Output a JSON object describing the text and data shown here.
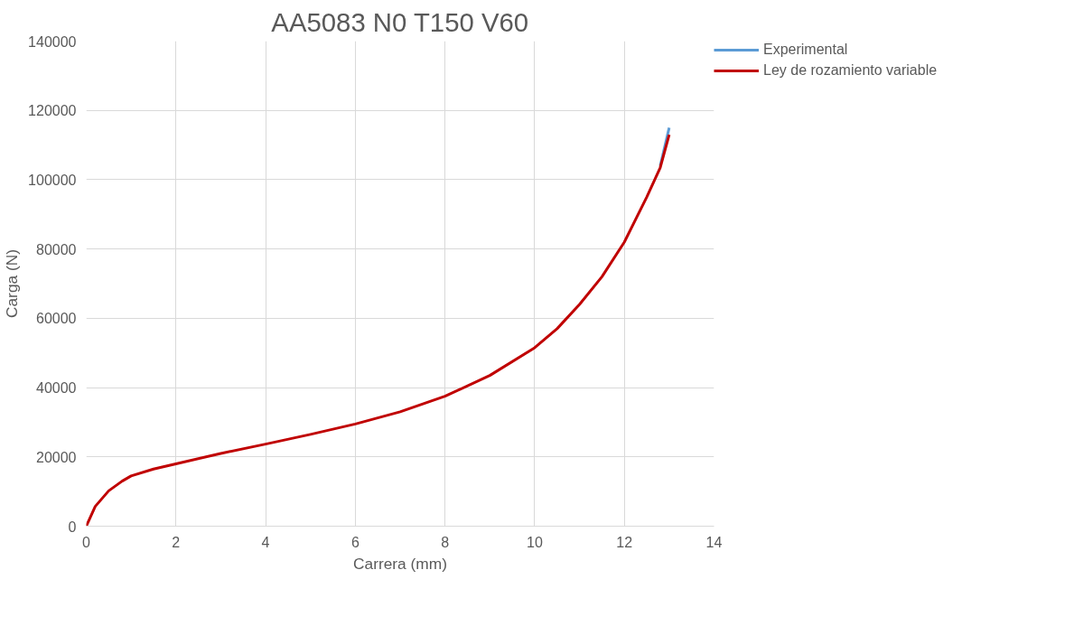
{
  "chart_data": {
    "type": "line",
    "title": "AA5083 N0 T150 V60",
    "xlabel": "Carrera (mm)",
    "ylabel": "Carga (N)",
    "xlim": [
      0,
      14
    ],
    "xticks": [
      0,
      2,
      4,
      6,
      8,
      10,
      12,
      14
    ],
    "ylim": [
      0,
      140000
    ],
    "yticks": [
      0,
      20000,
      40000,
      60000,
      80000,
      100000,
      120000,
      140000
    ],
    "grid": true,
    "legend": "right",
    "series": [
      {
        "name": "Experimental",
        "color": "#5b9bd5",
        "x": [
          12.8,
          13
        ],
        "values": [
          104000,
          115000
        ]
      },
      {
        "name": "Ley de rozamiento variable",
        "color": "#c00000",
        "x": [
          0,
          0.2,
          0.5,
          0.8,
          1,
          1.5,
          2,
          3,
          4,
          5,
          6,
          7,
          8,
          9,
          10,
          10.5,
          11,
          11.5,
          12,
          12.5,
          12.8,
          13
        ],
        "values": [
          0,
          5700,
          10200,
          13000,
          14500,
          16500,
          18000,
          21000,
          23700,
          26500,
          29500,
          33000,
          37500,
          43500,
          51500,
          57000,
          64000,
          72000,
          82000,
          95000,
          103500,
          113000
        ]
      }
    ]
  }
}
